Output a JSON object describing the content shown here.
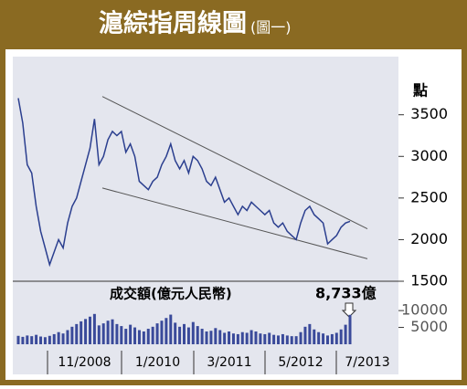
{
  "chart_data": {
    "type": "line",
    "title": "滬綜指周線圖",
    "subtitle": "(圖一)",
    "y_label": "點",
    "x_labels": [
      "11/2008",
      "1/2010",
      "3/2011",
      "5/2012",
      "7/2013"
    ],
    "series": [
      {
        "name": "滬綜指",
        "color": "#2b3f8f",
        "values": [
          3700,
          3400,
          2900,
          2800,
          2400,
          2100,
          1900,
          1700,
          1850,
          2000,
          1900,
          2200,
          2400,
          2500,
          2700,
          2900,
          3100,
          3450,
          2900,
          3000,
          3200,
          3300,
          3250,
          3300,
          3050,
          3150,
          3000,
          2700,
          2650,
          2600,
          2700,
          2750,
          2900,
          3000,
          3150,
          2950,
          2850,
          2950,
          2800,
          3000,
          2950,
          2850,
          2700,
          2650,
          2750,
          2600,
          2450,
          2500,
          2400,
          2300,
          2400,
          2350,
          2450,
          2400,
          2350,
          2300,
          2350,
          2200,
          2150,
          2200,
          2100,
          2050,
          2000,
          2200,
          2350,
          2400,
          2300,
          2250,
          2200,
          1950,
          2000,
          2050,
          2150,
          2200,
          2220
        ]
      }
    ],
    "ylim": [
      1500,
      4100
    ],
    "yticks": [
      1500,
      2000,
      2500,
      3000,
      3500
    ],
    "trendlines": [
      {
        "start": 3720,
        "end": 2130,
        "color": "#555555"
      },
      {
        "start": 2620,
        "end": 1770,
        "color": "#555555"
      }
    ],
    "volume": {
      "label": "成交額(億元人民幣)",
      "annotation": "8,733億",
      "color": "#3a4a9a",
      "values": [
        2500,
        2200,
        2600,
        2400,
        2800,
        2300,
        2100,
        2500,
        3000,
        3600,
        3200,
        4200,
        5200,
        6000,
        6800,
        7500,
        8200,
        9000,
        5600,
        6200,
        7000,
        7400,
        6000,
        5400,
        4600,
        5800,
        5000,
        4200,
        3800,
        4600,
        5200,
        6200,
        7000,
        7800,
        8800,
        6400,
        5200,
        6000,
        5000,
        6600,
        5400,
        4600,
        3800,
        4000,
        4800,
        4200,
        3400,
        3800,
        3200,
        3000,
        3600,
        3400,
        4200,
        3800,
        3200,
        3000,
        3400,
        2800,
        2600,
        3000,
        2600,
        2400,
        2400,
        3600,
        5200,
        6000,
        4400,
        3600,
        3200,
        2600,
        3000,
        3400,
        4400,
        5800,
        8733
      ],
      "ylim": [
        0,
        16000
      ],
      "yticks": [
        5000,
        10000
      ]
    }
  }
}
